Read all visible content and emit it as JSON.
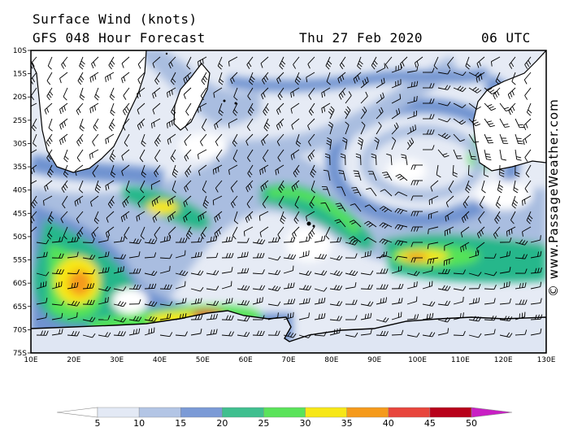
{
  "header": {
    "title": "Surface Wind (knots)",
    "subtitle": "GFS 048 Hour Forecast",
    "date": "Thu 27 Feb 2020",
    "time": "06 UTC"
  },
  "credit": "© www.PassageWeather.com",
  "map": {
    "lat_labels": [
      "10S",
      "15S",
      "20S",
      "25S",
      "30S",
      "35S",
      "40S",
      "45S",
      "50S",
      "55S",
      "60S",
      "65S",
      "70S",
      "75S"
    ],
    "lon_labels": [
      "10E",
      "20E",
      "30E",
      "40E",
      "50E",
      "60E",
      "70E",
      "80E",
      "90E",
      "100E",
      "110E",
      "120E",
      "130E"
    ],
    "lon_range": [
      10,
      130
    ],
    "lat_range": [
      -10,
      -75
    ],
    "colors": {
      "land": "#ffffff",
      "calm": "#ffffff",
      "low": "#dfe6f3",
      "light": "#a9bde0",
      "medium": "#6f93d0",
      "moderate": "#26b78b",
      "fresh": "#54e356",
      "strong": "#f7e716",
      "gale": "#f59a1b",
      "storm": "#e23f35"
    }
  },
  "legend": {
    "ticks": [
      "5",
      "10",
      "15",
      "20",
      "25",
      "30",
      "35",
      "40",
      "45",
      "50"
    ],
    "colors": [
      "#ffffff",
      "#e3e9f5",
      "#b3c5e5",
      "#7b9ad6",
      "#3fbf8f",
      "#5ae35a",
      "#f7e716",
      "#f59a1b",
      "#e8453c",
      "#b8001a",
      "#c91fc4"
    ]
  }
}
